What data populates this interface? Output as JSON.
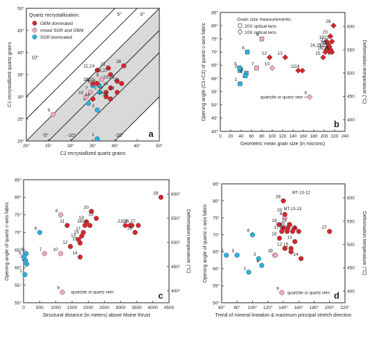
{
  "colors": {
    "gbm": "#d7262b",
    "mixed": "#f2a9c9",
    "sgr": "#27b3e3",
    "shade": "#d9d9d9"
  },
  "chart_data": [
    {
      "id": "a",
      "type": "scatter",
      "panel_label": "a",
      "xlabel": "C2 recrystallized quartz grains",
      "ylabel": "C1 recrystallized quartz grains",
      "xlim": [
        20,
        50
      ],
      "ylim": [
        20,
        50
      ],
      "xticks": [
        "20°",
        "25°",
        "30°",
        "35°",
        "40°",
        "45°",
        "50°"
      ],
      "yticks": [
        "20°",
        "25°",
        "30°",
        "35°",
        "40°",
        "45°",
        "50°"
      ],
      "legend_title": "Quartz recrystallization:",
      "legend": [
        {
          "label": "GBM dominated",
          "cls": "gbm"
        },
        {
          "label": "mixed SGR and GBM",
          "cls": "mixed"
        },
        {
          "label": "SGR dominated",
          "cls": "sgr"
        }
      ],
      "lines": [
        {
          "label": "10°",
          "dx": 10
        },
        {
          "label": "5°",
          "dx": 5
        },
        {
          "label": "0°",
          "dx": 0
        },
        {
          "label": "-5°",
          "dx": -5
        },
        {
          "label": "-10°",
          "dx": -10
        },
        {
          "label": "-20°",
          "dx": -20
        }
      ],
      "points": [
        {
          "x": 36.0,
          "y": 20.5,
          "label": "1",
          "cls": "sgr"
        },
        {
          "x": 36.0,
          "y": 27.0,
          "label": "2",
          "cls": "sgr"
        },
        {
          "x": 36.5,
          "y": 31.0,
          "label": "3",
          "cls": "sgr"
        },
        {
          "x": 34.0,
          "y": 28.5,
          "label": "4",
          "cls": "sgr"
        },
        {
          "x": 36.5,
          "y": 32.5,
          "label": "5",
          "cls": "sgr"
        },
        {
          "x": 35.0,
          "y": 32.5,
          "label": "6",
          "cls": "sgr"
        },
        {
          "x": 34.5,
          "y": 31.0,
          "label": "7",
          "cls": "mixed"
        },
        {
          "x": 37.0,
          "y": 34.0,
          "label": "8",
          "cls": "mixed"
        },
        {
          "x": 26.0,
          "y": 26.0,
          "label": "9",
          "cls": "mixed"
        },
        {
          "x": 33.5,
          "y": 30.0,
          "label": "10",
          "cls": "mixed"
        },
        {
          "x": 36.0,
          "y": 36.0,
          "label": "11,24",
          "cls": "gbm"
        },
        {
          "x": 35.0,
          "y": 33.0,
          "label": "12",
          "cls": "gbm"
        },
        {
          "x": 36.0,
          "y": 33.0,
          "label": "13,15",
          "cls": "gbm"
        },
        {
          "x": 35.0,
          "y": 29.5,
          "label": "14",
          "cls": "gbm"
        },
        {
          "x": 38.0,
          "y": 30.0,
          "label": "16",
          "cls": "gbm"
        },
        {
          "x": 38.0,
          "y": 31.0,
          "label": "17",
          "cls": "gbm"
        },
        {
          "x": 39.0,
          "y": 32.0,
          "label": "18",
          "cls": "gbm"
        },
        {
          "x": 40.5,
          "y": 33.5,
          "label": "19,22",
          "cls": "gbm"
        },
        {
          "x": 41.5,
          "y": 33.0,
          "label": "20",
          "cls": "gbm"
        },
        {
          "x": 38.5,
          "y": 36.5,
          "label": "21",
          "cls": "gbm"
        },
        {
          "x": 40.5,
          "y": 31.0,
          "label": "23",
          "cls": "gbm"
        },
        {
          "x": 39.0,
          "y": 29.5,
          "label": "25",
          "cls": "gbm"
        },
        {
          "x": 39.0,
          "y": 35.0,
          "label": "26,27",
          "cls": "gbm"
        },
        {
          "x": 42.0,
          "y": 37.0,
          "label": "28",
          "cls": "gbm"
        }
      ]
    },
    {
      "id": "b",
      "type": "scatter",
      "panel_label": "b",
      "xlabel": "Geometric mean grain size (in microns)",
      "ylabel": "Opening angle (C1+C2) of quartz c-axis fabric",
      "y2label": "Deformation temperature (°C)",
      "xlim": [
        0,
        240
      ],
      "ylim": [
        40,
        85
      ],
      "xticks": [
        "0",
        "20",
        "40",
        "60",
        "80",
        "100",
        "120",
        "140",
        "160",
        "180",
        "200",
        "220",
        "240"
      ],
      "yticks": [
        "40°",
        "45°",
        "50°",
        "55°",
        "60°",
        "65°",
        "70°",
        "75°",
        "80°",
        "85°"
      ],
      "y2ticks": [
        "400",
        "450",
        "500",
        "550",
        "600"
      ],
      "legend_title": "Grain size measurements:",
      "legend": [
        {
          "label": "20X optical lens",
          "marker": "square"
        },
        {
          "label": "10X optical lens",
          "marker": "diamond"
        }
      ],
      "annotations": [
        "quartzite or quartz vein"
      ],
      "points": [
        {
          "x": 38,
          "y": 58,
          "label": "1",
          "cls": "sgr",
          "m": "square"
        },
        {
          "x": 38,
          "y": 63,
          "label": "2",
          "cls": "sgr",
          "m": "square"
        },
        {
          "x": 50,
          "y": 62,
          "label": "3",
          "cls": "sgr",
          "m": "square"
        },
        {
          "x": 48,
          "y": 61,
          "label": "4",
          "cls": "sgr",
          "m": "square"
        },
        {
          "x": 37,
          "y": 64,
          "label": "5",
          "cls": "sgr",
          "m": "square"
        },
        {
          "x": 52,
          "y": 70,
          "label": "6",
          "cls": "sgr",
          "m": "square"
        },
        {
          "x": 70,
          "y": 64,
          "label": "7",
          "cls": "mixed",
          "m": "square"
        },
        {
          "x": 80,
          "y": 75,
          "label": "8",
          "cls": "mixed",
          "m": "square"
        },
        {
          "x": 172,
          "y": 53,
          "label": "9",
          "cls": "mixed",
          "m": "diamond"
        },
        {
          "x": 100,
          "y": 64,
          "label": "10",
          "cls": "mixed",
          "m": "diamond"
        },
        {
          "x": 150,
          "y": 63,
          "label": "11",
          "cls": "gbm",
          "m": "diamond"
        },
        {
          "x": 95,
          "y": 68,
          "label": "12",
          "cls": "gbm",
          "m": "diamond"
        },
        {
          "x": 125,
          "y": 68,
          "label": "13",
          "cls": "gbm",
          "m": "diamond"
        },
        {
          "x": 158,
          "y": 63,
          "label": "14",
          "cls": "gbm",
          "m": "diamond"
        },
        {
          "x": 198,
          "y": 68,
          "label": "15",
          "cls": "gbm",
          "m": "diamond"
        },
        {
          "x": 202,
          "y": 70,
          "label": "16",
          "cls": "gbm",
          "m": "diamond"
        },
        {
          "x": 205,
          "y": 71,
          "label": "17",
          "cls": "gbm",
          "m": "diamond"
        },
        {
          "x": 208,
          "y": 72,
          "label": "18",
          "cls": "gbm",
          "m": "diamond"
        },
        {
          "x": 205,
          "y": 74,
          "label": "19",
          "cls": "gbm",
          "m": "diamond"
        },
        {
          "x": 212,
          "y": 76,
          "label": "20",
          "cls": "gbm",
          "m": "diamond"
        },
        {
          "x": 215,
          "y": 74,
          "label": "21",
          "cls": "gbm",
          "m": "diamond"
        },
        {
          "x": 208,
          "y": 73,
          "label": "22",
          "cls": "gbm",
          "m": "diamond"
        },
        {
          "x": 210,
          "y": 72,
          "label": "23",
          "cls": "gbm",
          "m": "diamond"
        },
        {
          "x": 212,
          "y": 71,
          "label": "24,25,25",
          "cls": "gbm",
          "m": "diamond"
        },
        {
          "x": 215,
          "y": 70,
          "label": "26",
          "cls": "gbm",
          "m": "diamond"
        },
        {
          "x": 210,
          "y": 70,
          "label": "27",
          "cls": "gbm",
          "m": "diamond"
        },
        {
          "x": 218,
          "y": 80,
          "label": "28",
          "cls": "gbm",
          "m": "diamond"
        }
      ]
    },
    {
      "id": "c",
      "type": "scatter",
      "panel_label": "c",
      "xlabel": "Structural distance (in meters) above Moine thrust",
      "ylabel": "Opening angle of quartz c-axis fabric",
      "y2label": "Deformation temperature (°C)",
      "xlim": [
        0,
        4500
      ],
      "ylim": [
        50,
        85
      ],
      "xticks": [
        "0",
        "500",
        "1000",
        "1500",
        "2000",
        "2500",
        "3000",
        "3500",
        "4000",
        "4500"
      ],
      "yticks": [
        "50°",
        "55°",
        "60°",
        "65°",
        "70°",
        "75°",
        "80°",
        "85°"
      ],
      "y2ticks": [
        "400°",
        "450°",
        "500°",
        "550°",
        "600°"
      ],
      "annotations": [
        "quartzite or quartz vein"
      ],
      "points": [
        {
          "x": 40,
          "y": 58,
          "label": "1",
          "cls": "sgr"
        },
        {
          "x": 60,
          "y": 62,
          "label": "2",
          "cls": "sgr"
        },
        {
          "x": 80,
          "y": 64,
          "label": "3",
          "cls": "sgr"
        },
        {
          "x": 100,
          "y": 61,
          "label": "4",
          "cls": "sgr"
        },
        {
          "x": 20,
          "y": 63,
          "label": "5",
          "cls": "sgr"
        },
        {
          "x": 500,
          "y": 70,
          "label": "6",
          "cls": "sgr"
        },
        {
          "x": 650,
          "y": 64,
          "label": "7",
          "cls": "mixed"
        },
        {
          "x": 1150,
          "y": 75,
          "label": "8",
          "cls": "mixed"
        },
        {
          "x": 1200,
          "y": 53,
          "label": "9",
          "cls": "mixed"
        },
        {
          "x": 1150,
          "y": 64,
          "label": "10",
          "cls": "mixed"
        },
        {
          "x": 1350,
          "y": 72,
          "label": "11",
          "cls": "gbm"
        },
        {
          "x": 1450,
          "y": 66,
          "label": "12",
          "cls": "gbm"
        },
        {
          "x": 1700,
          "y": 68,
          "label": "13",
          "cls": "gbm"
        },
        {
          "x": 1750,
          "y": 63,
          "label": "14",
          "cls": "gbm"
        },
        {
          "x": 1750,
          "y": 67,
          "label": "15",
          "cls": "gbm"
        },
        {
          "x": 1800,
          "y": 69,
          "label": "16",
          "cls": "gbm"
        },
        {
          "x": 1850,
          "y": 70,
          "label": "17",
          "cls": "gbm"
        },
        {
          "x": 1900,
          "y": 72,
          "label": "18",
          "cls": "gbm"
        },
        {
          "x": 1950,
          "y": 73,
          "label": "19",
          "cls": "gbm"
        },
        {
          "x": 2100,
          "y": 76,
          "label": "20",
          "cls": "gbm"
        },
        {
          "x": 2050,
          "y": 72,
          "label": "21",
          "cls": "gbm"
        },
        {
          "x": 2250,
          "y": 74,
          "label": "22",
          "cls": "gbm"
        },
        {
          "x": 3150,
          "y": 72,
          "label": "23",
          "cls": "gbm"
        },
        {
          "x": 3300,
          "y": 72,
          "label": "24",
          "cls": "gbm"
        },
        {
          "x": 3350,
          "y": 72,
          "label": "25",
          "cls": "gbm"
        },
        {
          "x": 3450,
          "y": 70,
          "label": "26",
          "cls": "gbm"
        },
        {
          "x": 3550,
          "y": 72,
          "label": "27",
          "cls": "gbm"
        },
        {
          "x": 4250,
          "y": 80,
          "label": "28",
          "cls": "gbm"
        }
      ]
    },
    {
      "id": "d",
      "type": "scatter",
      "panel_label": "d",
      "xlabel": "Trend of mineral lineation & maximum principal stretch direction",
      "ylabel": "Opening angle of quartz c-axis fabric",
      "y2label": "Deformation temperature (°C)",
      "xlim": [
        60,
        220
      ],
      "ylim": [
        50,
        85
      ],
      "xticks": [
        "60°",
        "80°",
        "100°",
        "120°",
        "140°",
        "160°",
        "180°",
        "200°",
        "220°"
      ],
      "yticks": [
        "50°",
        "55°",
        "60°",
        "65°",
        "70°",
        "75°",
        "80°",
        "85°"
      ],
      "y2ticks": [
        "400",
        "450",
        "500",
        "550",
        "600"
      ],
      "annotations": [
        "quartzite or quartz vein",
        "MT-13-12",
        "MT-13-13"
      ],
      "points": [
        {
          "x": 95,
          "y": 59,
          "label": "1",
          "cls": "sgr"
        },
        {
          "x": 66,
          "y": 64,
          "label": "2",
          "cls": "sgr"
        },
        {
          "x": 108,
          "y": 63,
          "label": "3",
          "cls": "sgr"
        },
        {
          "x": 112,
          "y": 61,
          "label": "4",
          "cls": "sgr"
        },
        {
          "x": 80,
          "y": 64,
          "label": "5",
          "cls": "sgr"
        },
        {
          "x": 100,
          "y": 70,
          "label": "6",
          "cls": "sgr"
        },
        {
          "x": 129,
          "y": 64,
          "label": "7",
          "cls": "mixed"
        },
        {
          "x": 142,
          "y": 75,
          "label": "8",
          "cls": "mixed"
        },
        {
          "x": 138,
          "y": 53,
          "label": "9",
          "cls": "mixed"
        },
        {
          "x": 130,
          "y": 64,
          "label": "10",
          "cls": "mixed"
        },
        {
          "x": 150,
          "y": 65,
          "label": "11",
          "cls": "gbm"
        },
        {
          "x": 142,
          "y": 66,
          "label": "12",
          "cls": "gbm"
        },
        {
          "x": 155,
          "y": 68,
          "label": "13",
          "cls": "gbm"
        },
        {
          "x": 163,
          "y": 63,
          "label": "14",
          "cls": "gbm"
        },
        {
          "x": 150,
          "y": 66,
          "label": "15",
          "cls": "gbm"
        },
        {
          "x": 135,
          "y": 69,
          "label": "16",
          "cls": "gbm"
        },
        {
          "x": 138,
          "y": 71,
          "label": "17",
          "cls": "gbm"
        },
        {
          "x": 140,
          "y": 72,
          "label": "18",
          "cls": "gbm"
        },
        {
          "x": 135,
          "y": 73,
          "label": "19",
          "cls": "gbm"
        },
        {
          "x": 142,
          "y": 76,
          "label": "20",
          "cls": "gbm"
        },
        {
          "x": 155,
          "y": 72,
          "label": "21",
          "cls": "gbm"
        },
        {
          "x": 148,
          "y": 73,
          "label": "22",
          "cls": "gbm"
        },
        {
          "x": 160,
          "y": 71,
          "label": "23",
          "cls": "gbm"
        },
        {
          "x": 152,
          "y": 71,
          "label": "24",
          "cls": "gbm"
        },
        {
          "x": 146,
          "y": 72,
          "label": "25",
          "cls": "gbm"
        },
        {
          "x": 145,
          "y": 71,
          "label": "26",
          "cls": "gbm"
        },
        {
          "x": 200,
          "y": 71,
          "label": "27",
          "cls": "gbm"
        },
        {
          "x": 140,
          "y": 80,
          "label": "28",
          "cls": "gbm"
        }
      ]
    }
  ]
}
